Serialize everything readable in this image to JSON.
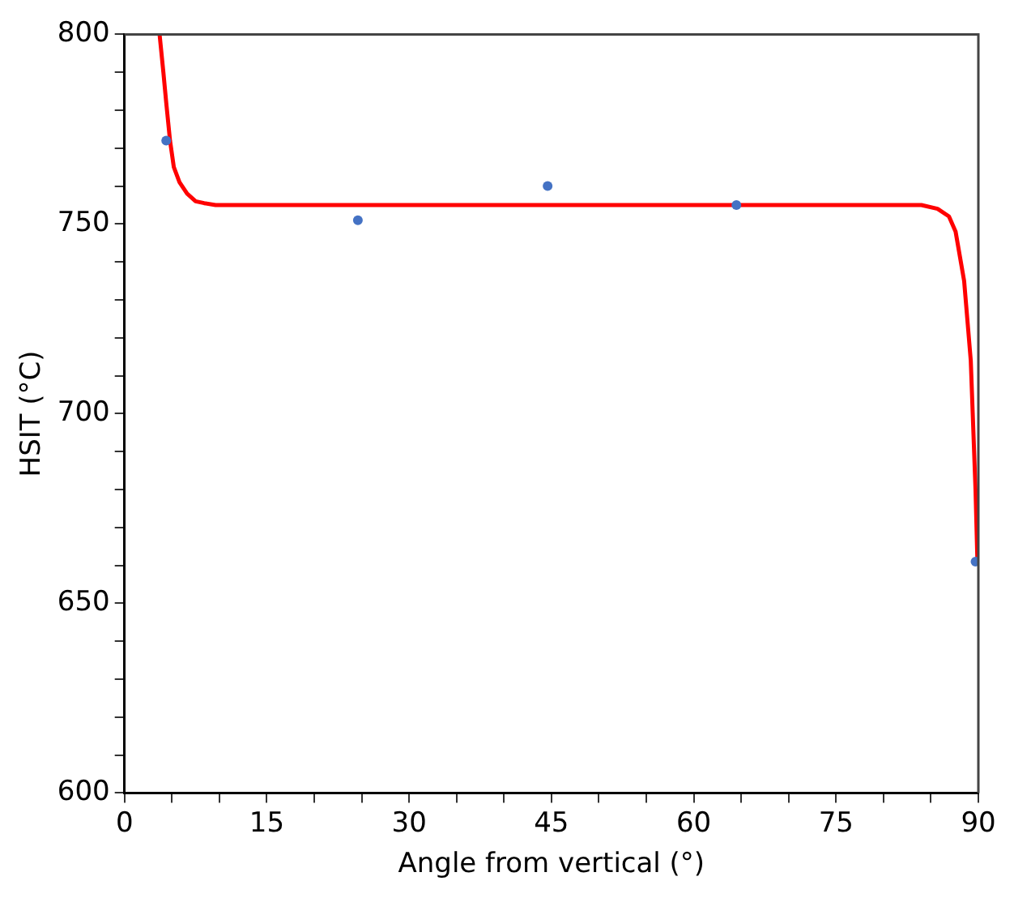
{
  "chart_data": {
    "type": "scatter",
    "xlabel": "Angle from vertical (°)",
    "ylabel": "HSIT (°C)",
    "xlim": [
      0,
      90
    ],
    "ylim": [
      600,
      800
    ],
    "xticks": [
      0,
      {
        "value": 5,
        "label": null
      },
      {
        "value": 10,
        "label": null
      },
      15,
      {
        "value": 20,
        "label": null
      },
      {
        "value": 25,
        "label": null
      },
      30,
      {
        "value": 35,
        "label": null
      },
      {
        "value": 40,
        "label": null
      },
      45,
      {
        "value": 50,
        "label": null
      },
      {
        "value": 55,
        "label": null
      },
      60,
      {
        "value": 65,
        "label": null
      },
      {
        "value": 70,
        "label": null
      },
      75,
      {
        "value": 80,
        "label": null
      },
      {
        "value": 85,
        "label": null
      },
      90
    ],
    "yticks": [
      600,
      {
        "value": 610,
        "label": null
      },
      {
        "value": 620,
        "label": null
      },
      {
        "value": 630,
        "label": null
      },
      {
        "value": 640,
        "label": null
      },
      650,
      {
        "value": 660,
        "label": null
      },
      {
        "value": 670,
        "label": null
      },
      {
        "value": 680,
        "label": null
      },
      {
        "value": 690,
        "label": null
      },
      700,
      {
        "value": 710,
        "label": null
      },
      {
        "value": 720,
        "label": null
      },
      {
        "value": 730,
        "label": null
      },
      {
        "value": 740,
        "label": null
      },
      750,
      {
        "value": 760,
        "label": null
      },
      {
        "value": 770,
        "label": null
      },
      {
        "value": 780,
        "label": null
      },
      {
        "value": 790,
        "label": null
      },
      800
    ],
    "grid": false,
    "legend": false,
    "series": [
      {
        "type": "scatter",
        "color": "#4472c4",
        "marker": "circle",
        "x": [
          4.4,
          24.6,
          44.6,
          64.5,
          89.7
        ],
        "values": [
          772,
          751,
          760,
          755,
          661
        ]
      },
      {
        "type": "line",
        "color": "#ff0000",
        "marker": "none",
        "x": [
          3.7,
          4.1,
          4.4,
          4.8,
          5.2,
          5.8,
          6.6,
          7.5,
          8.4,
          9.6,
          15,
          30,
          45,
          60,
          75,
          84,
          85.7,
          86.9,
          87.6,
          88.5,
          89.2,
          89.7,
          89.9
        ],
        "values": [
          800,
          790,
          782,
          772,
          765,
          761,
          758,
          756,
          755.5,
          755,
          755,
          755,
          755,
          755,
          755,
          755,
          754,
          752,
          748,
          735,
          714,
          680,
          661
        ]
      }
    ]
  }
}
